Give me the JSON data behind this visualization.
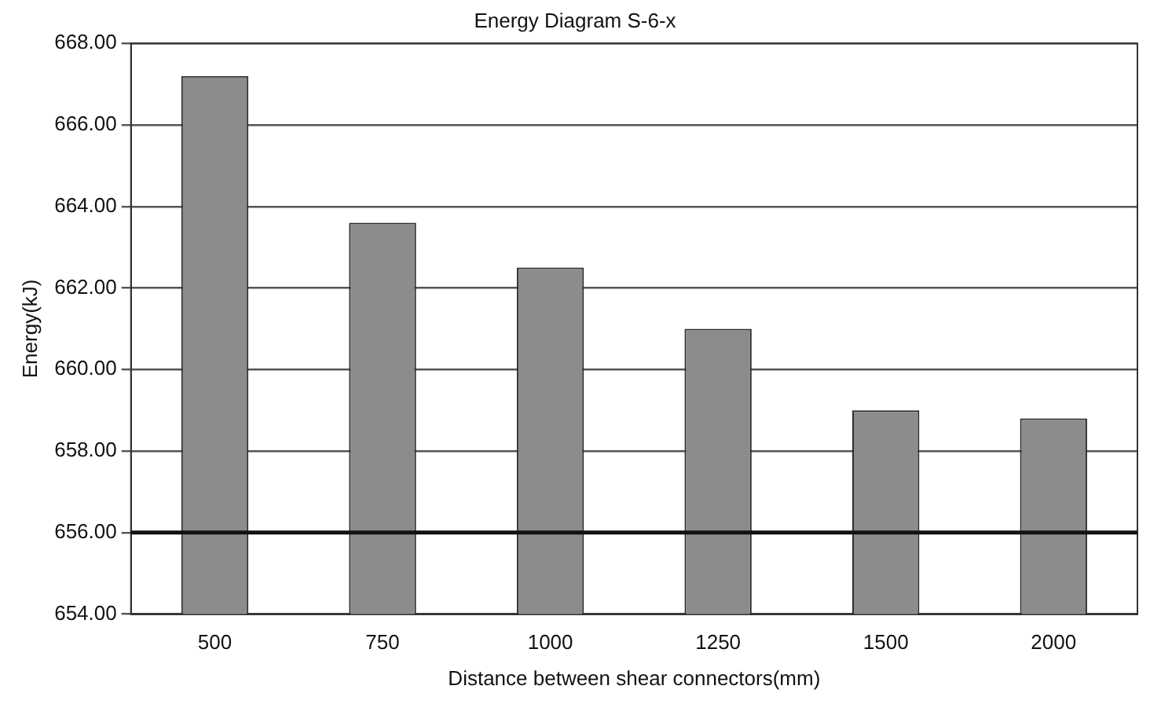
{
  "chart_data": {
    "type": "bar",
    "title": "Energy Diagram S-6-x",
    "xlabel": "Distance between shear connectors(mm)",
    "ylabel": "Energy(kJ)",
    "categories": [
      "500",
      "750",
      "1000",
      "1250",
      "1500",
      "2000"
    ],
    "values": [
      667.2,
      663.6,
      662.5,
      661.0,
      659.0,
      658.8
    ],
    "color": "#8c8c8c",
    "ylim": [
      654,
      668
    ],
    "yticks": [
      {
        "value": 654,
        "label": "654.00"
      },
      {
        "value": 656,
        "label": "656.00"
      },
      {
        "value": 658,
        "label": "658.00"
      },
      {
        "value": 660,
        "label": "660.00"
      },
      {
        "value": 662,
        "label": "662.00"
      },
      {
        "value": 664,
        "label": "664.00"
      },
      {
        "value": 666,
        "label": "666.00"
      },
      {
        "value": 668,
        "label": "668.00"
      }
    ],
    "grid": "y",
    "ref_lines": [
      {
        "axis": "y",
        "value": 656,
        "color": "#111111"
      }
    ]
  }
}
